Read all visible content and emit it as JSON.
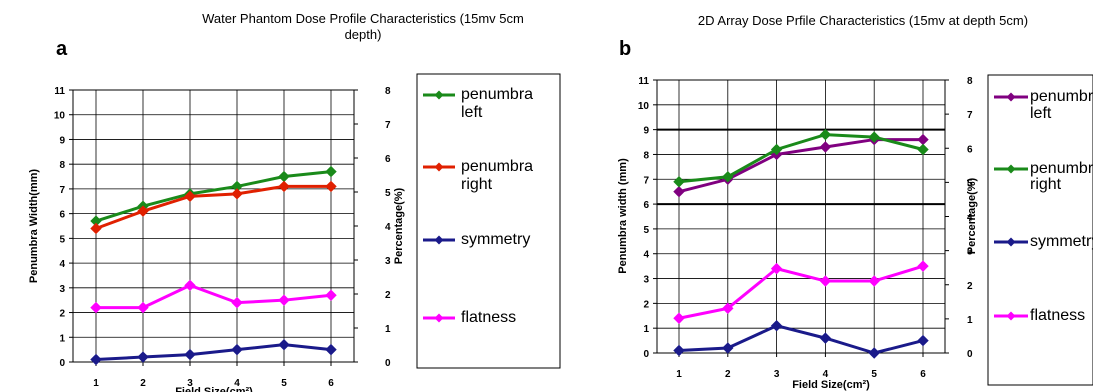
{
  "chart_data": [
    {
      "panel_label": "a",
      "type": "line",
      "title_lines": [
        "Water Phantom Dose Profile Characteristics (15mv 5cm",
        "depth)"
      ],
      "xlabel": "Field Size(cm²)",
      "ylabel_left": "Penumbra Width(mm)",
      "ylabel_right": "Percentage(%)",
      "x": [
        1,
        2,
        3,
        4,
        5,
        6
      ],
      "xlim": [
        1,
        6
      ],
      "ylim_left": [
        0,
        11
      ],
      "ylim_right": [
        0,
        8
      ],
      "left_ticks": [
        "0",
        "1",
        "2",
        "3",
        "4",
        "5",
        "6",
        "7",
        "8",
        "9",
        "10",
        "11"
      ],
      "right_ticks": [
        "0",
        "1",
        "2",
        "3",
        "4",
        "5",
        "6",
        "7",
        "8"
      ],
      "x_ticks": [
        "1",
        "2",
        "3",
        "4",
        "5",
        "6"
      ],
      "grid": true,
      "legend_position": "right",
      "series": [
        {
          "name_lines": [
            "penumbra",
            "left"
          ],
          "color": "#1a8a1a",
          "axis": "left",
          "values": [
            5.7,
            6.3,
            6.8,
            7.1,
            7.5,
            7.7
          ]
        },
        {
          "name_lines": [
            "penumbra",
            "right"
          ],
          "color": "#e02000",
          "axis": "left",
          "values": [
            5.4,
            6.1,
            6.7,
            6.8,
            7.1,
            7.1
          ]
        },
        {
          "name_lines": [
            "symmetry"
          ],
          "color": "#1a1a8a",
          "axis": "left",
          "values": [
            0.1,
            0.2,
            0.3,
            0.5,
            0.7,
            0.5
          ]
        },
        {
          "name_lines": [
            "flatness"
          ],
          "color": "#ff00ff",
          "axis": "left",
          "values": [
            2.2,
            2.2,
            3.1,
            2.4,
            2.5,
            2.7
          ]
        }
      ]
    },
    {
      "panel_label": "b",
      "type": "line",
      "title_lines": [
        "2D Array Dose Prfile Characteristics (15mv at depth 5cm)"
      ],
      "xlabel": "Field Size(cm²)",
      "ylabel_left": "Penumbra width (mm)",
      "ylabel_right": "Percentage(%)",
      "x": [
        1,
        2,
        3,
        4,
        5,
        6
      ],
      "xlim": [
        1,
        6
      ],
      "ylim_left": [
        0,
        11
      ],
      "ylim_right": [
        0,
        8
      ],
      "left_ticks": [
        "0",
        "1",
        "2",
        "3",
        "4",
        "5",
        "6",
        "7",
        "8",
        "9",
        "10",
        "11"
      ],
      "right_ticks": [
        "0",
        "1",
        "2",
        "3",
        "4",
        "5",
        "6",
        "7",
        "8"
      ],
      "x_ticks": [
        "1",
        "2",
        "3",
        "4",
        "5",
        "6"
      ],
      "grid": true,
      "legend_position": "right",
      "series": [
        {
          "name_lines": [
            "penumbra",
            "left"
          ],
          "color": "#800080",
          "axis": "left",
          "values": [
            6.5,
            7.0,
            8.0,
            8.3,
            8.6,
            8.6
          ]
        },
        {
          "name_lines": [
            "penumbra",
            "right"
          ],
          "color": "#1a8a1a",
          "axis": "left",
          "values": [
            6.9,
            7.1,
            8.2,
            8.8,
            8.7,
            8.2
          ]
        },
        {
          "name_lines": [
            "symmetry"
          ],
          "color": "#1a1a8a",
          "axis": "left",
          "values": [
            0.1,
            0.2,
            1.1,
            0.6,
            0.0,
            0.5
          ]
        },
        {
          "name_lines": [
            "flatness"
          ],
          "color": "#ff00ff",
          "axis": "left",
          "values": [
            1.4,
            1.8,
            3.4,
            2.9,
            2.9,
            3.5
          ]
        }
      ]
    }
  ]
}
